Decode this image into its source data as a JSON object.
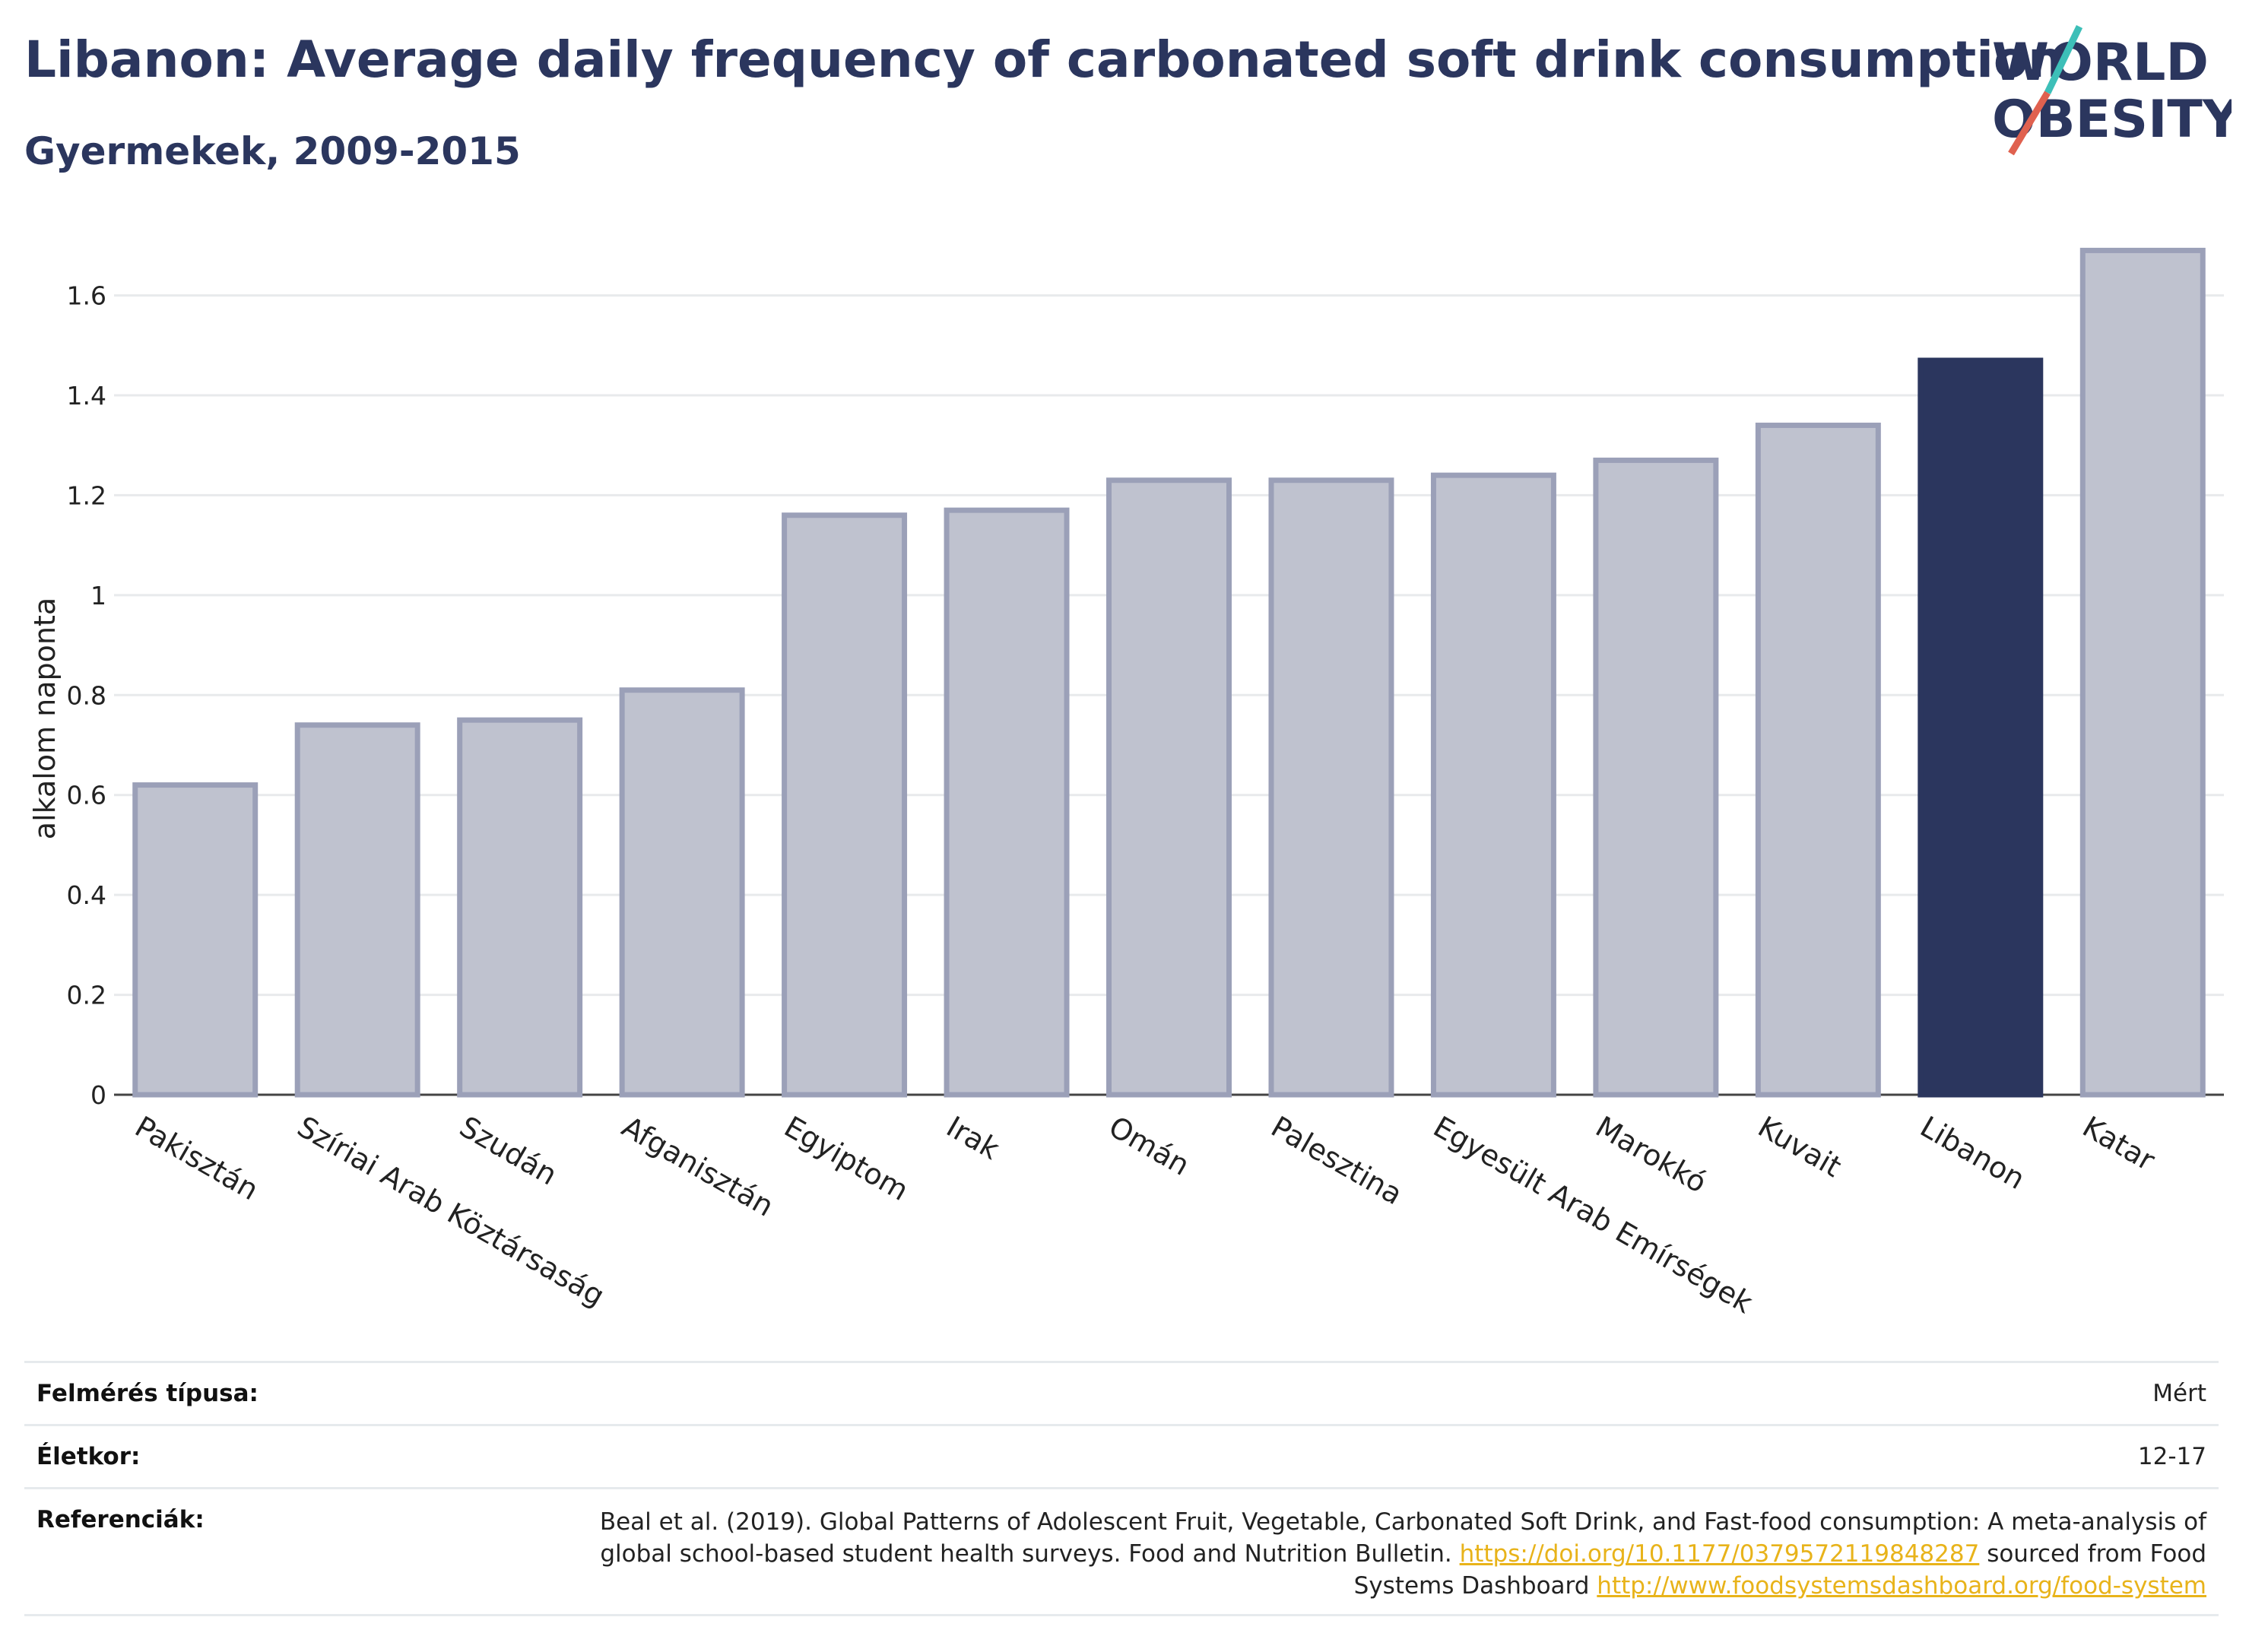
{
  "header": {
    "title": "Libanon: Average daily frequency of carbonated soft drink consumption",
    "subtitle": "Gyermekek, 2009-2015"
  },
  "logo": {
    "line1": "WORLD",
    "line2": "OBESITY",
    "accent_teal": "#3dbfb8",
    "accent_red": "#e0614f",
    "text_color": "#2b365e"
  },
  "chart_data": {
    "type": "bar",
    "ylabel": "alkalom naponta",
    "xlabel": "",
    "ylim": [
      0,
      1.75
    ],
    "yticks": [
      0,
      0.2,
      0.4,
      0.6,
      0.8,
      1,
      1.2,
      1.4,
      1.6
    ],
    "ytick_labels": [
      "0",
      "0.2",
      "0.4",
      "0.6",
      "0.8",
      "1",
      "1.2",
      "1.4",
      "1.6"
    ],
    "grid": true,
    "categories": [
      "Pakisztán",
      "Szíriai Arab Köztársaság",
      "Szudán",
      "Afganisztán",
      "Egyiptom",
      "Irak",
      "Omán",
      "Palesztina",
      "Egyesült Arab Emírségek",
      "Marokkó",
      "Kuvait",
      "Libanon",
      "Katar"
    ],
    "values": [
      0.62,
      0.74,
      0.75,
      0.81,
      1.16,
      1.17,
      1.23,
      1.23,
      1.24,
      1.27,
      1.34,
      1.47,
      1.69
    ],
    "highlight": "Libanon",
    "colors": {
      "bar": "#bfc2cf",
      "bar_edge": "#9ba0b8",
      "highlight": "#2b365e"
    }
  },
  "meta": {
    "survey_type_label": "Felmérés típusa:",
    "survey_type_value": "Mért",
    "age_label": "Életkor:",
    "age_value": "12-17",
    "references_label": "Referenciák:",
    "references_text_1": "Beal et al. (2019). Global Patterns of Adolescent Fruit, Vegetable, Carbonated Soft Drink, and Fast-food consumption: A meta-analysis of global school-based student health surveys. Food and Nutrition Bulletin.",
    "references_link_1": "https://doi.org/10.1177/0379572119848287",
    "references_text_2": "sourced from Food Systems Dashboard",
    "references_link_2": "http://www.foodsystemsdashboard.org/food-system"
  }
}
